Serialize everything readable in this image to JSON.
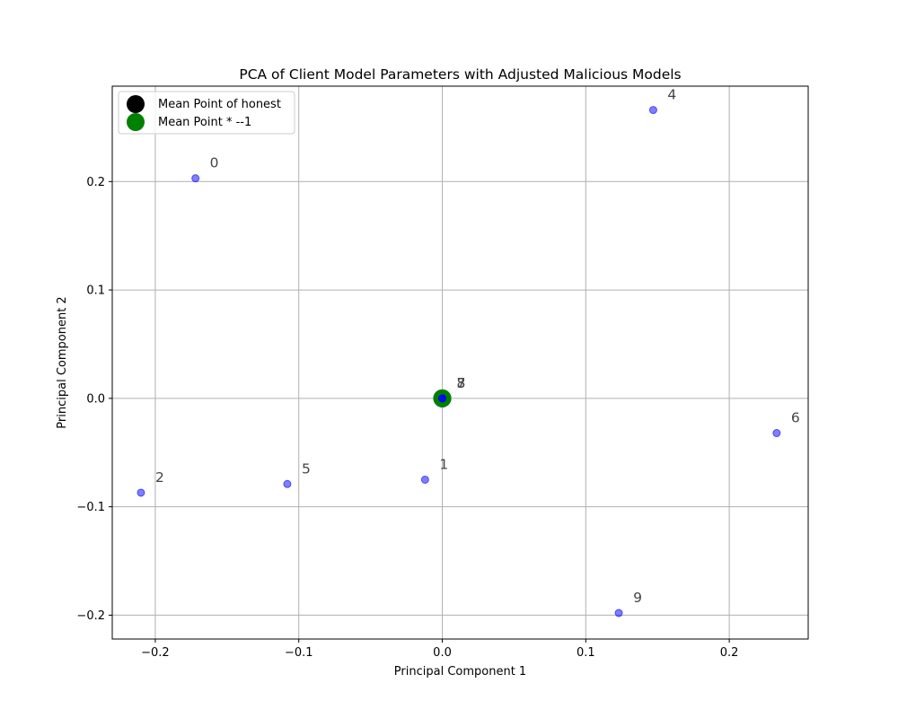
{
  "chart_data": {
    "type": "scatter",
    "title": "PCA of Client Model Parameters with Adjusted Malicious Models",
    "xlabel": "Principal Component 1",
    "ylabel": "Principal Component 2",
    "xlim": [
      -0.23,
      0.255
    ],
    "ylim": [
      -0.222,
      0.288
    ],
    "xticks": [
      -0.2,
      -0.1,
      0.0,
      0.1,
      0.2
    ],
    "xtick_labels": [
      "−0.2",
      "−0.1",
      "0.0",
      "0.1",
      "0.2"
    ],
    "yticks": [
      -0.2,
      -0.1,
      0.0,
      0.1,
      0.2
    ],
    "ytick_labels": [
      "−0.2",
      "−0.1",
      "0.0",
      "0.1",
      "0.2"
    ],
    "grid": true,
    "legend_position": "top-left",
    "series": [
      {
        "name": "Mean Point of honest",
        "color": "#000000",
        "points": [
          {
            "x": 0.0,
            "y": 0.0
          }
        ]
      },
      {
        "name": "Mean Point * --1",
        "color": "#008000",
        "points": [
          {
            "x": 0.0,
            "y": 0.0
          }
        ]
      }
    ],
    "clients": {
      "color": "#0000ff",
      "points": [
        {
          "label": "0",
          "x": -0.172,
          "y": 0.203
        },
        {
          "label": "1",
          "x": -0.012,
          "y": -0.075
        },
        {
          "label": "2",
          "x": -0.21,
          "y": -0.087
        },
        {
          "label": "3",
          "x": 0.0,
          "y": 0.0
        },
        {
          "label": "4",
          "x": 0.147,
          "y": 0.266
        },
        {
          "label": "5",
          "x": -0.108,
          "y": -0.079
        },
        {
          "label": "6",
          "x": 0.233,
          "y": -0.032
        },
        {
          "label": "7",
          "x": 0.0,
          "y": 0.0
        },
        {
          "label": "8",
          "x": 0.0,
          "y": 0.0
        },
        {
          "label": "9",
          "x": 0.123,
          "y": -0.198
        }
      ]
    }
  }
}
